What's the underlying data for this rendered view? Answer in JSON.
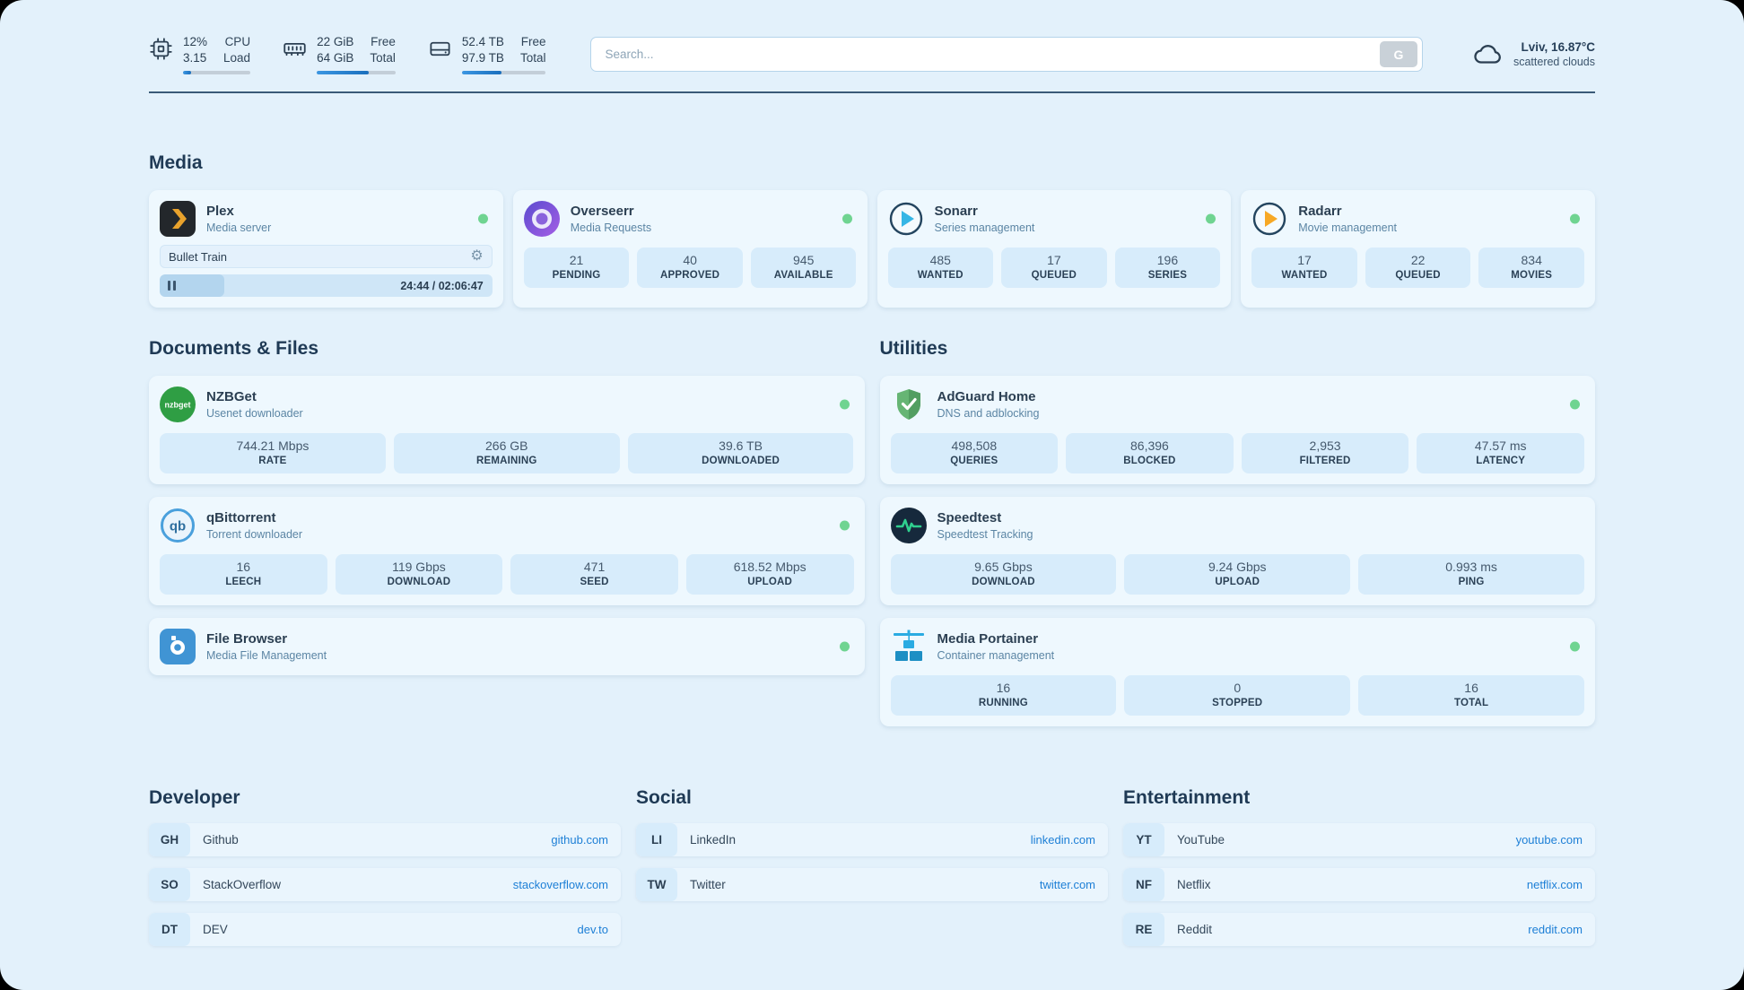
{
  "colors": {
    "page_background": "#e3f1fb",
    "accent_blue": "#2b8de0",
    "status_online_green": "#6fd491",
    "link_blue": "#1d7fd6"
  },
  "header": {
    "system_widgets": [
      {
        "icon": "cpu-icon",
        "value_top": "12%",
        "value_bottom": "3.15",
        "label_top": "CPU",
        "label_bottom": "Load",
        "progress_pct": 12
      },
      {
        "icon": "ram-icon",
        "value_top": "22 GiB",
        "value_bottom": "64 GiB",
        "label_top": "Free",
        "label_bottom": "Total",
        "progress_pct": 66
      },
      {
        "icon": "disk-icon",
        "value_top": "52.4 TB",
        "value_bottom": "97.9 TB",
        "label_top": "Free",
        "label_bottom": "Total",
        "progress_pct": 47
      }
    ],
    "search": {
      "placeholder": "Search...",
      "button_label": "G"
    },
    "weather": {
      "location": "Lviv, 16.87°C",
      "condition": "scattered clouds"
    }
  },
  "sections": {
    "media": {
      "title": "Media",
      "cards": [
        {
          "name": "Plex",
          "subtitle": "Media server",
          "status": "online",
          "player": {
            "track": "Bullet Train",
            "time_display": "24:44 / 02:06:47",
            "progress_pct": 19.5
          }
        },
        {
          "name": "Overseerr",
          "subtitle": "Media Requests",
          "status": "online",
          "stats": [
            {
              "value": "21",
              "label": "PENDING"
            },
            {
              "value": "40",
              "label": "APPROVED"
            },
            {
              "value": "945",
              "label": "AVAILABLE"
            }
          ]
        },
        {
          "name": "Sonarr",
          "subtitle": "Series management",
          "status": "online",
          "stats": [
            {
              "value": "485",
              "label": "WANTED"
            },
            {
              "value": "17",
              "label": "QUEUED"
            },
            {
              "value": "196",
              "label": "SERIES"
            }
          ]
        },
        {
          "name": "Radarr",
          "subtitle": "Movie management",
          "status": "online",
          "stats": [
            {
              "value": "17",
              "label": "WANTED"
            },
            {
              "value": "22",
              "label": "QUEUED"
            },
            {
              "value": "834",
              "label": "MOVIES"
            }
          ]
        }
      ]
    },
    "documents": {
      "title": "Documents & Files",
      "cards": [
        {
          "name": "NZBGet",
          "subtitle": "Usenet downloader",
          "status": "online",
          "stats": [
            {
              "value": "744.21 Mbps",
              "label": "RATE"
            },
            {
              "value": "266 GB",
              "label": "REMAINING"
            },
            {
              "value": "39.6 TB",
              "label": "DOWNLOADED"
            }
          ]
        },
        {
          "name": "qBittorrent",
          "subtitle": "Torrent downloader",
          "status": "online",
          "stats": [
            {
              "value": "16",
              "label": "LEECH"
            },
            {
              "value": "119 Gbps",
              "label": "DOWNLOAD"
            },
            {
              "value": "471",
              "label": "SEED"
            },
            {
              "value": "618.52 Mbps",
              "label": "UPLOAD"
            }
          ]
        },
        {
          "name": "File Browser",
          "subtitle": "Media File Management",
          "status": "online",
          "stats": []
        }
      ]
    },
    "utilities": {
      "title": "Utilities",
      "cards": [
        {
          "name": "AdGuard Home",
          "subtitle": "DNS and adblocking",
          "status": "online",
          "stats": [
            {
              "value": "498,508",
              "label": "QUERIES"
            },
            {
              "value": "86,396",
              "label": "BLOCKED"
            },
            {
              "value": "2,953",
              "label": "FILTERED"
            },
            {
              "value": "47.57 ms",
              "label": "LATENCY"
            }
          ]
        },
        {
          "name": "Speedtest",
          "subtitle": "Speedtest Tracking",
          "status": "none",
          "stats": [
            {
              "value": "9.65 Gbps",
              "label": "DOWNLOAD"
            },
            {
              "value": "9.24 Gbps",
              "label": "UPLOAD"
            },
            {
              "value": "0.993 ms",
              "label": "PING"
            }
          ]
        },
        {
          "name": "Media Portainer",
          "subtitle": "Container management",
          "status": "online",
          "stats": [
            {
              "value": "16",
              "label": "RUNNING"
            },
            {
              "value": "0",
              "label": "STOPPED"
            },
            {
              "value": "16",
              "label": "TOTAL"
            }
          ]
        }
      ]
    },
    "bookmarks": [
      {
        "title": "Developer",
        "items": [
          {
            "abbr": "GH",
            "name": "Github",
            "url": "github.com"
          },
          {
            "abbr": "SO",
            "name": "StackOverflow",
            "url": "stackoverflow.com"
          },
          {
            "abbr": "DT",
            "name": "DEV",
            "url": "dev.to"
          }
        ]
      },
      {
        "title": "Social",
        "items": [
          {
            "abbr": "LI",
            "name": "LinkedIn",
            "url": "linkedin.com"
          },
          {
            "abbr": "TW",
            "name": "Twitter",
            "url": "twitter.com"
          }
        ]
      },
      {
        "title": "Entertainment",
        "items": [
          {
            "abbr": "YT",
            "name": "YouTube",
            "url": "youtube.com"
          },
          {
            "abbr": "NF",
            "name": "Netflix",
            "url": "netflix.com"
          },
          {
            "abbr": "RE",
            "name": "Reddit",
            "url": "reddit.com"
          }
        ]
      }
    ]
  }
}
